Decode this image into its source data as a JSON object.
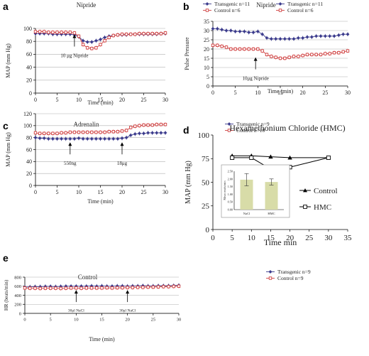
{
  "chart_data": [
    {
      "id": "a",
      "type": "line",
      "panel_letter": "a",
      "title": "Nipride",
      "xlabel": "Time (min)",
      "ylabel": "MAP (mm Hg)",
      "xlim": [
        0,
        30
      ],
      "ylim": [
        0,
        100
      ],
      "xticks": [
        "0",
        "5",
        "10",
        "15",
        "20",
        "25",
        "30"
      ],
      "yticks": [
        "0",
        "20",
        "40",
        "60",
        "80",
        "100"
      ],
      "grid": true,
      "legend_position": "top-right",
      "series": [
        {
          "name": "Transgenic n=11",
          "color": "#3a3a8c",
          "marker": "diamond",
          "x": [
            0,
            1,
            2,
            3,
            4,
            5,
            6,
            7,
            8,
            9,
            10,
            11,
            12,
            13,
            14,
            15,
            16,
            17,
            18,
            19,
            20,
            21,
            22,
            23,
            24,
            25,
            26,
            27,
            28,
            29,
            30
          ],
          "y": [
            92,
            92,
            92,
            92,
            91,
            91,
            91,
            91,
            91,
            90,
            87,
            81,
            79,
            79,
            81,
            83,
            86,
            88,
            89,
            90,
            90,
            90,
            91,
            91,
            91,
            91,
            91,
            91,
            91,
            92,
            92
          ]
        },
        {
          "name": "Control n=6",
          "color": "#d04040",
          "marker": "square",
          "x": [
            0,
            1,
            2,
            3,
            4,
            5,
            6,
            7,
            8,
            9,
            10,
            11,
            12,
            13,
            14,
            15,
            16,
            17,
            18,
            19,
            20,
            21,
            22,
            23,
            24,
            25,
            26,
            27,
            28,
            29,
            30
          ],
          "y": [
            95,
            95,
            95,
            94,
            94,
            94,
            94,
            94,
            94,
            93,
            88,
            75,
            70,
            69,
            70,
            75,
            81,
            86,
            89,
            90,
            91,
            91,
            91,
            91,
            92,
            92,
            92,
            92,
            92,
            92,
            93
          ]
        }
      ],
      "annotations": [
        {
          "text": "10 μg Nipride",
          "x": 9,
          "y": 72
        }
      ]
    },
    {
      "id": "b",
      "type": "line",
      "panel_letter": "b",
      "title": "Nipride",
      "xlabel": "Time (min)",
      "ylabel": "Pulse Pressure",
      "xlim": [
        0,
        30
      ],
      "ylim": [
        0,
        35
      ],
      "xticks": [
        "0",
        "5",
        "10",
        "15",
        "20",
        "25",
        "30"
      ],
      "yticks": [
        "0",
        "5",
        "10",
        "15",
        "20",
        "25",
        "30",
        "35"
      ],
      "grid": true,
      "legend_position": "top-right",
      "series": [
        {
          "name": "Transgenic n=11",
          "color": "#3a3a8c",
          "marker": "diamond",
          "x": [
            0,
            1,
            2,
            3,
            4,
            5,
            6,
            7,
            8,
            9,
            10,
            11,
            12,
            13,
            14,
            15,
            16,
            17,
            18,
            19,
            20,
            21,
            22,
            23,
            24,
            25,
            26,
            27,
            28,
            29,
            30
          ],
          "y": [
            31,
            31,
            30.5,
            30,
            30,
            29.5,
            29.5,
            29.5,
            29,
            29,
            29.5,
            28,
            26,
            25.5,
            25.5,
            25.5,
            25.5,
            25.5,
            25.5,
            26,
            26,
            26.5,
            26.5,
            27,
            27,
            27,
            27,
            27,
            27.5,
            28,
            28
          ]
        },
        {
          "name": "Control n=6",
          "color": "#d04040",
          "marker": "square",
          "x": [
            0,
            1,
            2,
            3,
            4,
            5,
            6,
            7,
            8,
            9,
            10,
            11,
            12,
            13,
            14,
            15,
            16,
            17,
            18,
            19,
            20,
            21,
            22,
            23,
            24,
            25,
            26,
            27,
            28,
            29,
            30
          ],
          "y": [
            22,
            22,
            21.5,
            21,
            20,
            20,
            20,
            20,
            20,
            20,
            20,
            19,
            17,
            16,
            15.5,
            15,
            15,
            15.5,
            16,
            16,
            16.5,
            17,
            17,
            17,
            17,
            17.5,
            17.5,
            18,
            18,
            18.5,
            19
          ]
        }
      ],
      "annotations": [
        {
          "text": "10μg Nipride",
          "x": 9.5,
          "y": 9
        }
      ]
    },
    {
      "id": "c",
      "type": "line",
      "panel_letter": "c",
      "title": "Adrenalin",
      "xlabel": "Time (min)",
      "ylabel": "MAP (mm Hg)",
      "xlim": [
        0,
        30
      ],
      "ylim": [
        0,
        120
      ],
      "xticks": [
        "0",
        "5",
        "10",
        "15",
        "20",
        "25",
        "30"
      ],
      "yticks": [
        "0",
        "20",
        "40",
        "60",
        "80",
        "100",
        "120"
      ],
      "grid": true,
      "legend_position": "top-right",
      "series": [
        {
          "name": "Transgenic n=9",
          "color": "#3a3a8c",
          "marker": "diamond",
          "x": [
            0,
            1,
            2,
            3,
            4,
            5,
            6,
            7,
            8,
            9,
            10,
            11,
            12,
            13,
            14,
            15,
            16,
            17,
            18,
            19,
            20,
            21,
            22,
            23,
            24,
            25,
            26,
            27,
            28,
            29,
            30
          ],
          "y": [
            80,
            79,
            79,
            78,
            78,
            78,
            78,
            78,
            78,
            78,
            79,
            78,
            78,
            78,
            78,
            78,
            78,
            78,
            78,
            78,
            79,
            80,
            84,
            86,
            87,
            87,
            88,
            88,
            88,
            88,
            88
          ]
        },
        {
          "name": "Control n=10",
          "color": "#d04040",
          "marker": "square",
          "x": [
            0,
            1,
            2,
            3,
            4,
            5,
            6,
            7,
            8,
            9,
            10,
            11,
            12,
            13,
            14,
            15,
            16,
            17,
            18,
            19,
            20,
            21,
            22,
            23,
            24,
            25,
            26,
            27,
            28,
            29,
            30
          ],
          "y": [
            88,
            87,
            87,
            87,
            87,
            87,
            88,
            88,
            89,
            89,
            89,
            89,
            89,
            89,
            89,
            89,
            89,
            90,
            90,
            90,
            91,
            92,
            97,
            99,
            100,
            101,
            101,
            101,
            102,
            102,
            102
          ]
        }
      ],
      "annotations": [
        {
          "text": "550ng",
          "x": 8,
          "y": 52
        },
        {
          "text": "18μg",
          "x": 20,
          "y": 52
        }
      ]
    },
    {
      "id": "d",
      "type": "line",
      "panel_letter": "d",
      "title": "Hexamethonium Chloride (HMC)",
      "xlabel": "Time min",
      "ylabel": "MAP (mm Hg)",
      "xlim": [
        0,
        35
      ],
      "ylim": [
        0,
        100
      ],
      "xticks": [
        "0",
        "5",
        "10",
        "15",
        "20",
        "25",
        "30",
        "35"
      ],
      "yticks": [
        "0",
        "25",
        "50",
        "75",
        "100"
      ],
      "grid": false,
      "legend_position": "right",
      "series": [
        {
          "name": "Control",
          "color": "#000000",
          "marker": "triangle",
          "x": [
            5,
            10,
            15,
            20,
            30
          ],
          "y": [
            78,
            78,
            77,
            76,
            76
          ]
        },
        {
          "name": "HMC",
          "color": "#000000",
          "marker": "square",
          "x": [
            5,
            10,
            15,
            20,
            30
          ],
          "y": [
            76,
            76,
            64,
            66,
            76
          ]
        }
      ],
      "inset": {
        "type": "bar",
        "ylabel": "Mean reads/min",
        "categories": [
          "NaCl",
          "HMC"
        ],
        "values": [
          1.95,
          1.8
        ],
        "errors": [
          0.4,
          0.2
        ],
        "ylim": [
          0,
          2.5
        ],
        "yticks": [
          "0.00",
          "0.50",
          "1.00",
          "1.50",
          "2.00",
          "2.50"
        ],
        "bar_color": "#d8dca8"
      }
    },
    {
      "id": "e",
      "type": "line",
      "panel_letter": "e",
      "title": "Control",
      "xlabel": "Time (min)",
      "ylabel": "HR (beats/min)",
      "xlim": [
        0,
        30
      ],
      "ylim": [
        0,
        800
      ],
      "xticks": [
        "0",
        "5",
        "10",
        "15",
        "20",
        "25",
        "30"
      ],
      "yticks": [
        "0",
        "200",
        "400",
        "600",
        "800"
      ],
      "grid": true,
      "legend_position": "top-right",
      "series": [
        {
          "name": "Transgenic n=9",
          "color": "#3a3a8c",
          "marker": "diamond",
          "x": [
            0,
            1,
            2,
            3,
            4,
            5,
            6,
            7,
            8,
            9,
            10,
            11,
            12,
            13,
            14,
            15,
            16,
            17,
            18,
            19,
            20,
            21,
            22,
            23,
            24,
            25,
            26,
            27,
            28,
            29,
            30
          ],
          "y": [
            580,
            585,
            590,
            590,
            595,
            595,
            590,
            595,
            600,
            600,
            600,
            600,
            600,
            605,
            600,
            605,
            600,
            600,
            605,
            605,
            600,
            605,
            605,
            610,
            605,
            605,
            610,
            610,
            610,
            615,
            620
          ]
        },
        {
          "name": "Control n=9",
          "color": "#d04040",
          "marker": "square",
          "x": [
            0,
            1,
            2,
            3,
            4,
            5,
            6,
            7,
            8,
            9,
            10,
            11,
            12,
            13,
            14,
            15,
            16,
            17,
            18,
            19,
            20,
            21,
            22,
            23,
            24,
            25,
            26,
            27,
            28,
            29,
            30
          ],
          "y": [
            560,
            555,
            555,
            550,
            555,
            555,
            555,
            550,
            555,
            560,
            560,
            555,
            560,
            560,
            560,
            560,
            565,
            560,
            565,
            565,
            570,
            570,
            575,
            575,
            580,
            580,
            585,
            590,
            590,
            595,
            600
          ]
        }
      ],
      "annotations": [
        {
          "text": "30μl NaCl",
          "x": 10,
          "y": 250
        },
        {
          "text": "30μl NaCl",
          "x": 20,
          "y": 250
        }
      ]
    }
  ]
}
